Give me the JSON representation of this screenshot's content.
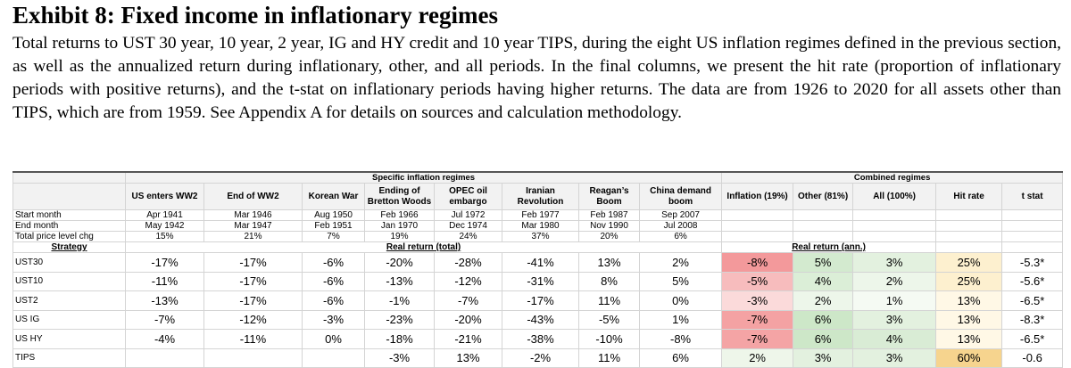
{
  "title": "Exhibit 8: Fixed income in inflationary regimes",
  "description": "Total returns to UST 30 year, 10 year, 2 year, IG and HY credit and 10 year TIPS, during the eight US inflation regimes defined in the previous section, as well as the annualized return during inflationary, other, and all periods. In the final columns, we present the hit rate (proportion of inflationary periods with positive returns), and the t-stat on inflationary periods having higher returns. The data are from 1926 to 2020 for all assets other than TIPS, which are from 1959. See Appendix A for details on sources and calculation methodology.",
  "table": {
    "groups": [
      "Specific inflation regimes",
      "Combined regimes"
    ],
    "columns": [
      "US enters WW2",
      "End of WW2",
      "Korean War",
      "Ending of Bretton Woods",
      "OPEC oil embargo",
      "Iranian Revolution",
      "Reagan’s Boom",
      "China demand boom",
      "Inflation (19%)",
      "Other (81%)",
      "All (100%)",
      "Hit rate",
      "t stat"
    ],
    "info_rows": [
      {
        "label": "Start month",
        "cells": [
          "Apr 1941",
          "Mar 1946",
          "Aug 1950",
          "Feb 1966",
          "Jul 1972",
          "Feb 1977",
          "Feb 1987",
          "Sep 2007"
        ]
      },
      {
        "label": "End month",
        "cells": [
          "May 1942",
          "Mar 1947",
          "Feb 1951",
          "Jan 1970",
          "Dec 1974",
          "Mar 1980",
          "Nov 1990",
          "Jul 2008"
        ]
      },
      {
        "label": "Total price level chg",
        "cells": [
          "15%",
          "21%",
          "7%",
          "19%",
          "24%",
          "37%",
          "20%",
          "6%"
        ]
      }
    ],
    "section_row": {
      "label": "Strategy",
      "groups": [
        "Real return (total)",
        "Real return (ann.)"
      ]
    },
    "rows": [
      {
        "label": "UST30",
        "cells": [
          "-17%",
          "-17%",
          "-6%",
          "-20%",
          "-28%",
          "-41%",
          "13%",
          "2%",
          "-8%",
          "5%",
          "3%",
          "25%",
          "-5.3*"
        ]
      },
      {
        "label": "UST10",
        "cells": [
          "-11%",
          "-17%",
          "-6%",
          "-13%",
          "-12%",
          "-31%",
          "8%",
          "5%",
          "-5%",
          "4%",
          "2%",
          "25%",
          "-5.6*"
        ]
      },
      {
        "label": "UST2",
        "cells": [
          "-13%",
          "-17%",
          "-6%",
          "-1%",
          "-7%",
          "-17%",
          "11%",
          "0%",
          "-3%",
          "2%",
          "1%",
          "13%",
          "-6.5*"
        ]
      },
      {
        "label": "US IG",
        "cells": [
          "-7%",
          "-12%",
          "-3%",
          "-23%",
          "-20%",
          "-43%",
          "-5%",
          "1%",
          "-7%",
          "6%",
          "3%",
          "13%",
          "-8.3*"
        ]
      },
      {
        "label": "US HY",
        "cells": [
          "-4%",
          "-11%",
          "0%",
          "-18%",
          "-21%",
          "-38%",
          "-10%",
          "-8%",
          "-7%",
          "6%",
          "4%",
          "13%",
          "-6.5*"
        ]
      },
      {
        "label": "TIPS",
        "cells": [
          null,
          null,
          null,
          "-3%",
          "13%",
          "-2%",
          "11%",
          "6%",
          "2%",
          "3%",
          "3%",
          "60%",
          "-0.6"
        ]
      }
    ]
  }
}
